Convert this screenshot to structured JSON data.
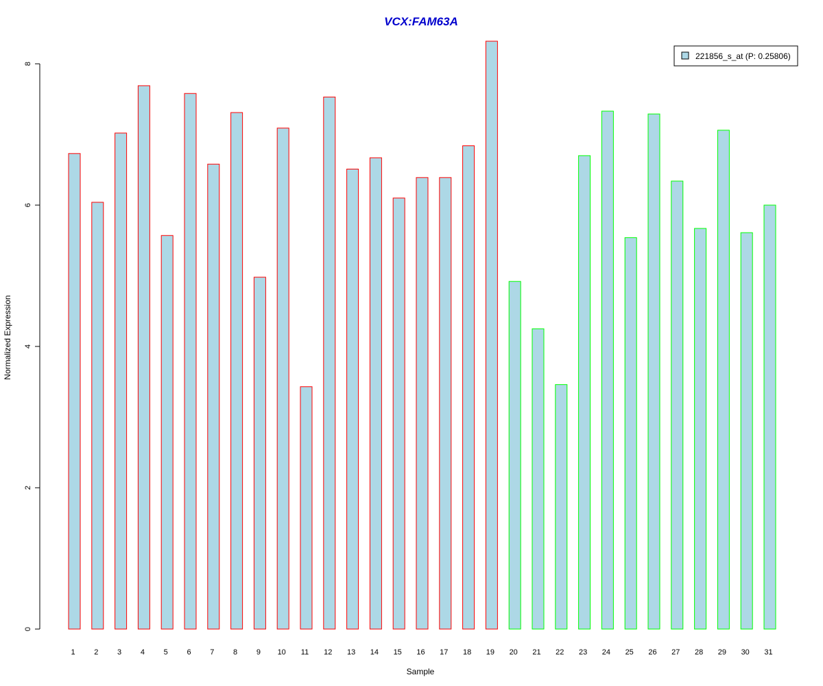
{
  "chart_data": {
    "type": "bar",
    "title": "VCX:FAM63A",
    "xlabel": "Sample",
    "ylabel": "Normalized Expression",
    "categories": [
      "1",
      "2",
      "3",
      "4",
      "5",
      "6",
      "7",
      "8",
      "9",
      "10",
      "11",
      "12",
      "13",
      "14",
      "15",
      "16",
      "17",
      "18",
      "19",
      "20",
      "21",
      "22",
      "23",
      "24",
      "25",
      "26",
      "27",
      "28",
      "29",
      "30",
      "31"
    ],
    "series": [
      {
        "name": "221856_s_at (P: 0.25806)",
        "values": [
          6.73,
          6.04,
          7.02,
          7.69,
          5.57,
          7.58,
          6.58,
          7.31,
          4.98,
          7.09,
          3.43,
          7.53,
          6.51,
          6.67,
          6.1,
          6.39,
          6.39,
          6.84,
          8.32,
          4.92,
          4.25,
          3.46,
          6.7,
          7.33,
          5.54,
          7.29,
          6.34,
          5.67,
          7.06,
          5.61,
          6.0
        ]
      }
    ],
    "groups": [
      1,
      1,
      1,
      1,
      1,
      1,
      1,
      1,
      1,
      1,
      1,
      1,
      1,
      1,
      1,
      1,
      1,
      1,
      1,
      2,
      2,
      2,
      2,
      2,
      2,
      2,
      2,
      2,
      2,
      2,
      2
    ],
    "ylim": [
      0,
      8.4
    ],
    "yticks": [
      0,
      2,
      4,
      6,
      8
    ],
    "legend_position": "top-right",
    "grid": false,
    "colors": {
      "bar_fill": "#add8e6",
      "group1_border": "#ff0000",
      "group2_border": "#00ff00",
      "title": "#0000cd",
      "axis": "#000000"
    }
  }
}
